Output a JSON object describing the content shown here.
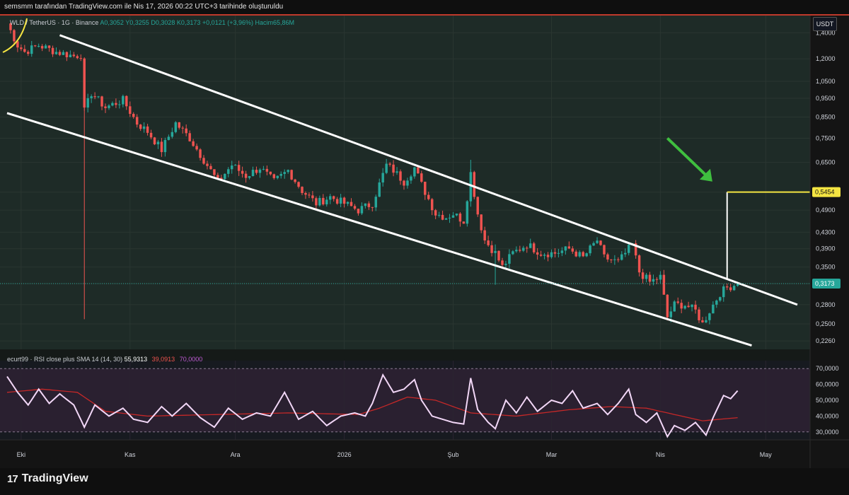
{
  "header": {
    "caption": "semsmm tarafından TradingView.com ile Nis 17, 2026 00:22 UTC+3 tarihinde oluşturuldu"
  },
  "legend": {
    "symbol": "WLD / TetherUS · 1G · Binance",
    "open": "A0,3052",
    "high": "Y0,3255",
    "low": "D0,3028",
    "close": "K0,3173",
    "change": "+0,0121 (+3,96%)",
    "volume": "Hacim65,86M"
  },
  "price_axis": {
    "unit": "USDT",
    "current_price_label": "0,3173",
    "target_label": "0,5454"
  },
  "rsi_legend": {
    "name": "ecurt99 · RSI close plus SMA 14 (14, 30)",
    "value": "55,9313",
    "sma_value": "39,0913",
    "extra_value": "70,0000"
  },
  "branding": {
    "name": "TradingView"
  },
  "colors": {
    "up": "#26a69a",
    "down": "#ef5350",
    "channel": "#ffffff",
    "target_line": "#f5e542",
    "arrow": "#3fbf3f",
    "rsi_line": "#f2d7f7",
    "rsi_sma": "#c62828",
    "price_bg": "#1e2b27",
    "rsi_bg": "#2a2030"
  },
  "chart_data": [
    {
      "type": "candlestick",
      "scale": "log",
      "ylim": [
        0.215,
        1.55
      ],
      "y_ticks": [
        1.4,
        1.2,
        1.05,
        0.95,
        0.85,
        0.75,
        0.65,
        0.545,
        0.49,
        0.43,
        0.39,
        0.35,
        0.317,
        0.28,
        0.25,
        0.226
      ],
      "y_tick_labels": [
        "1,4000",
        "1,2000",
        "1,0500",
        "0,9500",
        "0,8500",
        "0,7500",
        "0,6500",
        "",
        "0,4900",
        "0,4300",
        "0,3900",
        "0,3500",
        "",
        "0,2800",
        "0,2500",
        "0,2260"
      ],
      "x_tick_labels": [
        {
          "label": "Eki",
          "day": 4
        },
        {
          "label": "Kas",
          "day": 35
        },
        {
          "label": "Ara",
          "day": 65
        },
        {
          "label": "2026",
          "day": 96
        },
        {
          "label": "Şub",
          "day": 127
        },
        {
          "label": "Mar",
          "day": 155
        },
        {
          "label": "Nis",
          "day": 186
        },
        {
          "label": "May",
          "day": 216
        }
      ],
      "anchors": [
        {
          "day": 0,
          "close": 1.48
        },
        {
          "day": 3,
          "close": 1.3
        },
        {
          "day": 5,
          "close": 1.25
        },
        {
          "day": 9,
          "close": 1.3
        },
        {
          "day": 14,
          "close": 1.25
        },
        {
          "day": 19,
          "close": 1.22
        },
        {
          "day": 21,
          "close": 1.23
        },
        {
          "day": 22,
          "close": 0.88
        },
        {
          "day": 24,
          "close": 0.98
        },
        {
          "day": 28,
          "close": 0.9
        },
        {
          "day": 33,
          "close": 0.94
        },
        {
          "day": 37,
          "close": 0.82
        },
        {
          "day": 40,
          "close": 0.78
        },
        {
          "day": 44,
          "close": 0.7
        },
        {
          "day": 48,
          "close": 0.82
        },
        {
          "day": 52,
          "close": 0.75
        },
        {
          "day": 56,
          "close": 0.66
        },
        {
          "day": 60,
          "close": 0.58
        },
        {
          "day": 64,
          "close": 0.64
        },
        {
          "day": 68,
          "close": 0.6
        },
        {
          "day": 72,
          "close": 0.63
        },
        {
          "day": 76,
          "close": 0.58
        },
        {
          "day": 80,
          "close": 0.62
        },
        {
          "day": 84,
          "close": 0.55
        },
        {
          "day": 88,
          "close": 0.51
        },
        {
          "day": 92,
          "close": 0.53
        },
        {
          "day": 96,
          "close": 0.51
        },
        {
          "day": 100,
          "close": 0.49
        },
        {
          "day": 104,
          "close": 0.51
        },
        {
          "day": 108,
          "close": 0.64
        },
        {
          "day": 110,
          "close": 0.62
        },
        {
          "day": 113,
          "close": 0.58
        },
        {
          "day": 116,
          "close": 0.63
        },
        {
          "day": 118,
          "close": 0.57
        },
        {
          "day": 122,
          "close": 0.48
        },
        {
          "day": 125,
          "close": 0.47
        },
        {
          "day": 127,
          "close": 0.48
        },
        {
          "day": 130,
          "close": 0.46
        },
        {
          "day": 132,
          "close": 0.61
        },
        {
          "day": 134,
          "close": 0.48
        },
        {
          "day": 136,
          "close": 0.41
        },
        {
          "day": 139,
          "close": 0.38
        },
        {
          "day": 141,
          "close": 0.35
        },
        {
          "day": 144,
          "close": 0.38
        },
        {
          "day": 148,
          "close": 0.4
        },
        {
          "day": 152,
          "close": 0.38
        },
        {
          "day": 156,
          "close": 0.38
        },
        {
          "day": 160,
          "close": 0.39
        },
        {
          "day": 164,
          "close": 0.37
        },
        {
          "day": 168,
          "close": 0.41
        },
        {
          "day": 170,
          "close": 0.37
        },
        {
          "day": 174,
          "close": 0.36
        },
        {
          "day": 178,
          "close": 0.4
        },
        {
          "day": 180,
          "close": 0.34
        },
        {
          "day": 183,
          "close": 0.32
        },
        {
          "day": 186,
          "close": 0.33
        },
        {
          "day": 188,
          "close": 0.26
        },
        {
          "day": 190,
          "close": 0.28
        },
        {
          "day": 193,
          "close": 0.28
        },
        {
          "day": 196,
          "close": 0.27
        },
        {
          "day": 198,
          "close": 0.25
        },
        {
          "day": 200,
          "close": 0.27
        },
        {
          "day": 203,
          "close": 0.3
        },
        {
          "day": 205,
          "close": 0.31
        },
        {
          "day": 208,
          "close": 0.3173
        }
      ],
      "channel_upper": [
        {
          "day": 15,
          "price": 1.38
        },
        {
          "day": 225,
          "price": 0.28
        }
      ],
      "channel_lower": [
        {
          "day": 0,
          "price": 0.87
        },
        {
          "day": 212,
          "price": 0.22
        }
      ],
      "target": {
        "day_from": 205,
        "price_from": 0.3255,
        "price_to": 0.5454
      }
    },
    {
      "type": "line",
      "name": "RSI",
      "ylim": [
        25,
        75
      ],
      "levels": [
        70,
        30
      ],
      "y_ticks": [
        70,
        60,
        50,
        40,
        30
      ],
      "y_tick_labels": [
        "70,0000",
        "60,0000",
        "50,0000",
        "40,0000",
        "30,0000"
      ],
      "rsi_anchors": [
        {
          "day": 0,
          "v": 65
        },
        {
          "day": 3,
          "v": 55
        },
        {
          "day": 6,
          "v": 47
        },
        {
          "day": 9,
          "v": 57
        },
        {
          "day": 12,
          "v": 48
        },
        {
          "day": 15,
          "v": 54
        },
        {
          "day": 19,
          "v": 47
        },
        {
          "day": 22,
          "v": 33
        },
        {
          "day": 25,
          "v": 47
        },
        {
          "day": 29,
          "v": 40
        },
        {
          "day": 33,
          "v": 45
        },
        {
          "day": 36,
          "v": 38
        },
        {
          "day": 40,
          "v": 36
        },
        {
          "day": 44,
          "v": 46
        },
        {
          "day": 47,
          "v": 40
        },
        {
          "day": 51,
          "v": 48
        },
        {
          "day": 55,
          "v": 39
        },
        {
          "day": 59,
          "v": 33
        },
        {
          "day": 63,
          "v": 45
        },
        {
          "day": 67,
          "v": 38
        },
        {
          "day": 71,
          "v": 42
        },
        {
          "day": 75,
          "v": 40
        },
        {
          "day": 79,
          "v": 55
        },
        {
          "day": 83,
          "v": 38
        },
        {
          "day": 87,
          "v": 43
        },
        {
          "day": 91,
          "v": 34
        },
        {
          "day": 95,
          "v": 40
        },
        {
          "day": 99,
          "v": 42
        },
        {
          "day": 102,
          "v": 40
        },
        {
          "day": 104,
          "v": 48
        },
        {
          "day": 107,
          "v": 66
        },
        {
          "day": 110,
          "v": 55
        },
        {
          "day": 113,
          "v": 57
        },
        {
          "day": 116,
          "v": 63
        },
        {
          "day": 118,
          "v": 50
        },
        {
          "day": 121,
          "v": 40
        },
        {
          "day": 124,
          "v": 38
        },
        {
          "day": 127,
          "v": 36
        },
        {
          "day": 130,
          "v": 35
        },
        {
          "day": 132,
          "v": 64
        },
        {
          "day": 134,
          "v": 44
        },
        {
          "day": 137,
          "v": 36
        },
        {
          "day": 139,
          "v": 32
        },
        {
          "day": 142,
          "v": 50
        },
        {
          "day": 145,
          "v": 42
        },
        {
          "day": 148,
          "v": 52
        },
        {
          "day": 151,
          "v": 43
        },
        {
          "day": 155,
          "v": 50
        },
        {
          "day": 158,
          "v": 48
        },
        {
          "day": 161,
          "v": 56
        },
        {
          "day": 164,
          "v": 45
        },
        {
          "day": 168,
          "v": 48
        },
        {
          "day": 171,
          "v": 41
        },
        {
          "day": 174,
          "v": 48
        },
        {
          "day": 177,
          "v": 57
        },
        {
          "day": 179,
          "v": 41
        },
        {
          "day": 182,
          "v": 36
        },
        {
          "day": 185,
          "v": 42
        },
        {
          "day": 188,
          "v": 27
        },
        {
          "day": 190,
          "v": 34
        },
        {
          "day": 193,
          "v": 31
        },
        {
          "day": 196,
          "v": 36
        },
        {
          "day": 199,
          "v": 28
        },
        {
          "day": 201,
          "v": 39
        },
        {
          "day": 204,
          "v": 53
        },
        {
          "day": 206,
          "v": 51
        },
        {
          "day": 208,
          "v": 56
        }
      ],
      "sma_anchors": [
        {
          "day": 0,
          "v": 55
        },
        {
          "day": 10,
          "v": 57
        },
        {
          "day": 20,
          "v": 55
        },
        {
          "day": 28,
          "v": 43
        },
        {
          "day": 40,
          "v": 40
        },
        {
          "day": 60,
          "v": 41
        },
        {
          "day": 80,
          "v": 42
        },
        {
          "day": 100,
          "v": 41
        },
        {
          "day": 106,
          "v": 45
        },
        {
          "day": 114,
          "v": 52
        },
        {
          "day": 122,
          "v": 50
        },
        {
          "day": 132,
          "v": 42
        },
        {
          "day": 145,
          "v": 40
        },
        {
          "day": 160,
          "v": 44
        },
        {
          "day": 172,
          "v": 46
        },
        {
          "day": 182,
          "v": 45
        },
        {
          "day": 192,
          "v": 40
        },
        {
          "day": 198,
          "v": 37
        },
        {
          "day": 203,
          "v": 38
        },
        {
          "day": 208,
          "v": 39
        }
      ]
    }
  ]
}
